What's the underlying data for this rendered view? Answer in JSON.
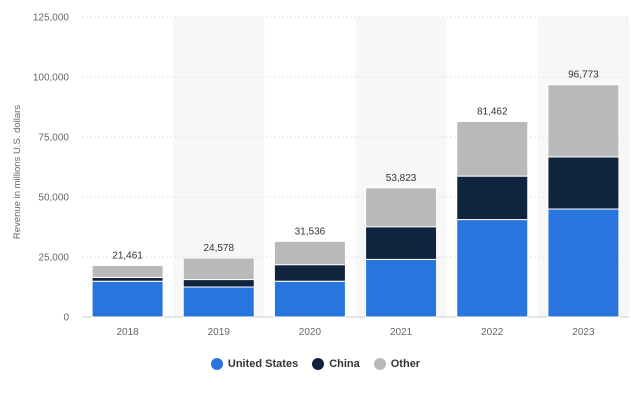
{
  "chart_data": {
    "type": "bar",
    "stacked": true,
    "categories": [
      "2018",
      "2019",
      "2020",
      "2021",
      "2022",
      "2023"
    ],
    "series": [
      {
        "name": "United States",
        "color": "#2876dd",
        "values": [
          14900,
          12500,
          14900,
          24000,
          40600,
          45000
        ]
      },
      {
        "name": "China",
        "color": "#10243e",
        "values": [
          1600,
          3100,
          6900,
          13600,
          18100,
          21700
        ]
      },
      {
        "name": "Other",
        "color": "#b9b9b9",
        "values": [
          4961,
          8978,
          9736,
          16223,
          22762,
          30073
        ]
      }
    ],
    "totals": [
      "21,461",
      "24,578",
      "31,536",
      "53,823",
      "81,462",
      "96,773"
    ],
    "ylabel": "Revenue in millions U.S. dollars",
    "ylim": [
      0,
      125000
    ],
    "yticks": [
      0,
      25000,
      50000,
      75000,
      100000,
      125000
    ],
    "ytick_labels": [
      "0",
      "25,000",
      "50,000",
      "75,000",
      "100,000",
      "125,000"
    ],
    "grid": true,
    "legend": "bottom-center",
    "shaded_columns": [
      "2019",
      "2021",
      "2023"
    ]
  }
}
